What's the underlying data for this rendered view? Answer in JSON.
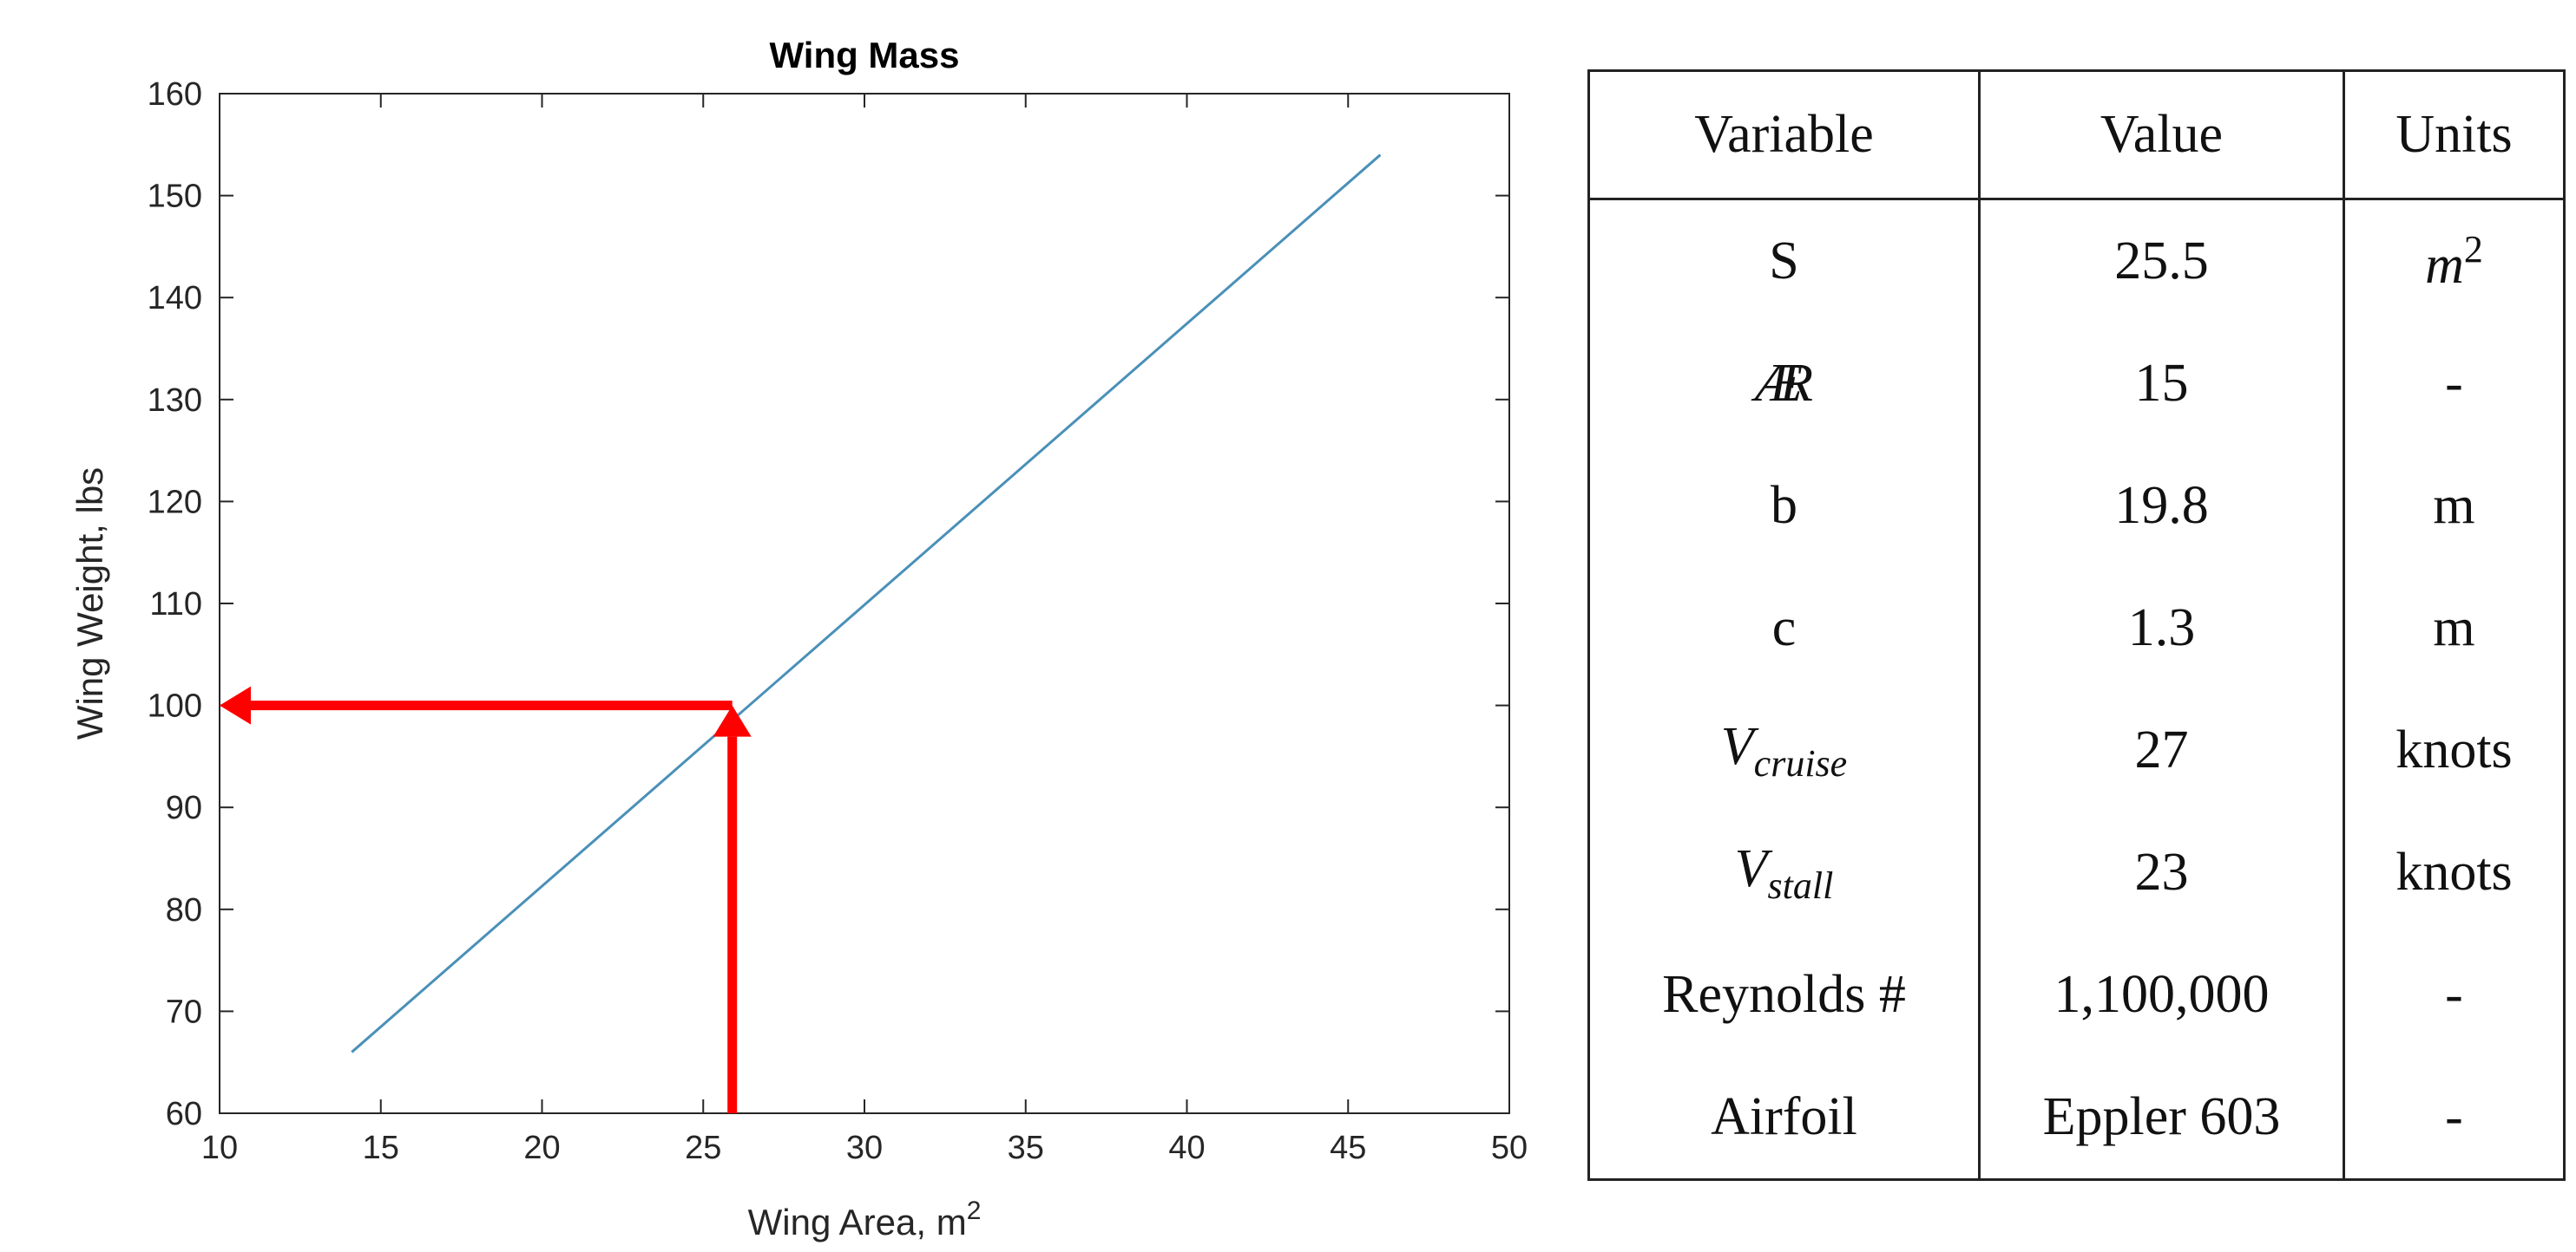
{
  "chart_data": {
    "type": "line",
    "title": "Wing Mass",
    "xlabel": "Wing Area, m",
    "xlabel_sup": "2",
    "ylabel": "Wing Weight, lbs",
    "xlim": [
      10,
      50
    ],
    "ylim": [
      60,
      160
    ],
    "xticks": [
      10,
      15,
      20,
      25,
      30,
      35,
      40,
      45,
      50
    ],
    "yticks": [
      60,
      70,
      80,
      90,
      100,
      110,
      120,
      130,
      140,
      150,
      160
    ],
    "grid": false,
    "series": [
      {
        "x": [
          14.1,
          46.0
        ],
        "y": [
          66.0,
          154.0
        ],
        "color": "#4a90b8"
      }
    ],
    "annotations": {
      "point": {
        "x": 25.9,
        "y": 100
      },
      "arrow_color": "#ff0000"
    }
  },
  "table": {
    "headers": [
      "Variable",
      "Value",
      "Units"
    ],
    "rows": [
      {
        "variable": "S",
        "value": "25.5",
        "units": "m",
        "units_sup": "2"
      },
      {
        "variable": "Æ",
        "variable_tail": "R",
        "value": "15",
        "units": "-"
      },
      {
        "variable": "b",
        "value": "19.8",
        "units": "m"
      },
      {
        "variable": "c",
        "value": "1.3",
        "units": "m"
      },
      {
        "variable": "V",
        "variable_sub": "cruise",
        "value": "27",
        "units": "knots"
      },
      {
        "variable": "V",
        "variable_sub": "stall",
        "value": "23",
        "units": "knots"
      },
      {
        "variable": "Reynolds #",
        "value": "1,100,000",
        "units": "-"
      },
      {
        "variable": "Airfoil",
        "value": "Eppler 603",
        "units": "-"
      }
    ]
  }
}
